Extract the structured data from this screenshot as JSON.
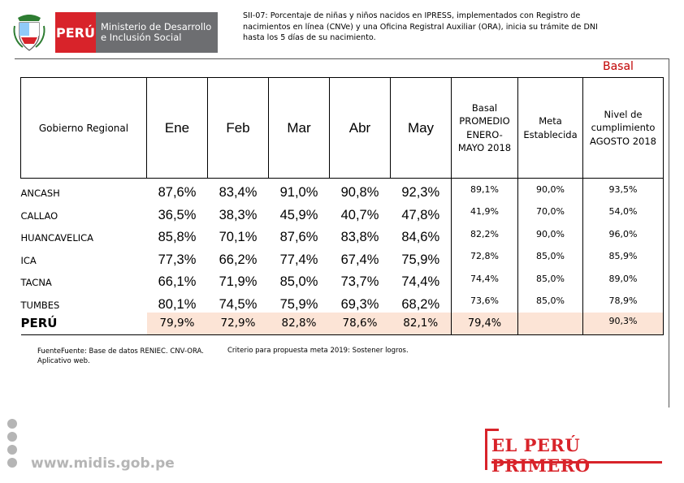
{
  "header": {
    "country_label": "PERÚ",
    "ministry_line1": "Ministerio de Desarrollo",
    "ministry_line2": "e Inclusión Social",
    "title_line1": "SII-07: Porcentaje de niñas y niños nacidos en IPRESS, implementados con Registro de",
    "title_line2": "nacimientos en línea (CNVe) y una Oficina Registral Auxiliar (ORA), inicia su trámite de DNI",
    "title_line3": "hasta los 5 días de su nacimiento.",
    "basal_tag": "Basal"
  },
  "table": {
    "region_header": "Gobierno Regional",
    "months": [
      "Ene",
      "Feb",
      "Mar",
      "Abr",
      "May"
    ],
    "basal_header": [
      "Basal",
      "PROMEDIO",
      "ENERO-",
      "MAYO 2018"
    ],
    "meta_header": [
      "Meta",
      "Establecida"
    ],
    "nivel_header": [
      "Nivel de",
      "cumplimiento",
      "AGOSTO 2018"
    ],
    "rows": [
      {
        "region": "ANCASH",
        "values": [
          "87,6%",
          "83,4%",
          "91,0%",
          "90,8%",
          "92,3%"
        ],
        "basal": "89,1%",
        "meta": "90,0%",
        "nivel": "93,5%"
      },
      {
        "region": "CALLAO",
        "values": [
          "36,5%",
          "38,3%",
          "45,9%",
          "40,7%",
          "47,8%"
        ],
        "basal": "41,9%",
        "meta": "70,0%",
        "nivel": "54,0%"
      },
      {
        "region": "HUANCAVELICA",
        "values": [
          "85,8%",
          "70,1%",
          "87,6%",
          "83,8%",
          "84,6%"
        ],
        "basal": "82,2%",
        "meta": "90,0%",
        "nivel": "96,0%"
      },
      {
        "region": "ICA",
        "values": [
          "77,3%",
          "66,2%",
          "77,4%",
          "67,4%",
          "75,9%"
        ],
        "basal": "72,8%",
        "meta": "85,0%",
        "nivel": "85,9%"
      },
      {
        "region": "TACNA",
        "values": [
          "66,1%",
          "71,9%",
          "85,0%",
          "73,7%",
          "74,4%"
        ],
        "basal": "74,4%",
        "meta": "85,0%",
        "nivel": "89,0%"
      },
      {
        "region": "TUMBES",
        "values": [
          "80,1%",
          "74,5%",
          "75,9%",
          "69,3%",
          "68,2%"
        ],
        "basal": "73,6%",
        "meta": "85,0%",
        "nivel": "78,9%"
      }
    ],
    "total": {
      "region": "PERÚ",
      "values": [
        "79,9%",
        "72,9%",
        "82,8%",
        "78,6%",
        "82,1%"
      ],
      "basal": "79,4%",
      "meta": "",
      "nivel": "90,3%"
    }
  },
  "footer": {
    "source_text": "FuenteFuente: Base de datos RENIEC. CNV-ORA. Aplicativo web.",
    "criteria_label": "Criterio para propuesta meta 2019:",
    "criteria_value": "Sostener logros.",
    "website": "www.midis.gob.pe",
    "slogan": "EL PERÚ PRIMERO",
    "social_icons": [
      "facebook-icon",
      "twitter-icon",
      "flickr-icon",
      "youtube-icon"
    ]
  },
  "colors": {
    "brand_red": "#d8232a",
    "ministry_gray": "#6d6e71",
    "total_row": "#fce4d6",
    "basal_tag": "#c00000"
  }
}
